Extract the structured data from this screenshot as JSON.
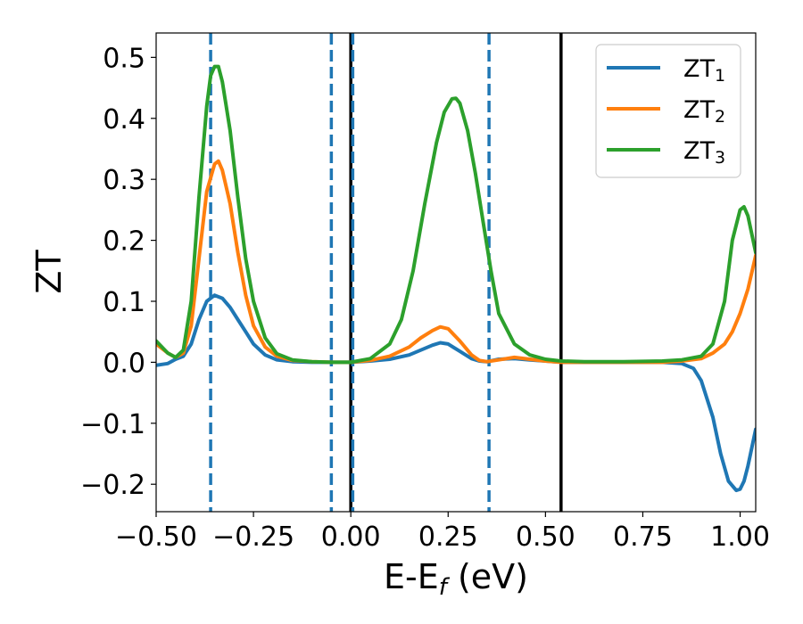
{
  "chart_data": {
    "type": "line",
    "xlabel": "E-E",
    "xlabel_sub": "f",
    "xlabel_unit": " (eV)",
    "ylabel": "ZT",
    "xlim": [
      -0.5,
      1.04
    ],
    "ylim": [
      -0.245,
      0.54
    ],
    "xticks": [
      -0.5,
      -0.25,
      0.0,
      0.25,
      0.5,
      0.75,
      1.0
    ],
    "xtick_labels": [
      "−0.50",
      "−0.25",
      "0.00",
      "0.25",
      "0.50",
      "0.75",
      "1.00"
    ],
    "yticks": [
      -0.2,
      -0.1,
      0.0,
      0.1,
      0.2,
      0.3,
      0.4,
      0.5
    ],
    "ytick_labels": [
      "−0.2",
      "−0.1",
      "0.0",
      "0.1",
      "0.2",
      "0.3",
      "0.4",
      "0.5"
    ],
    "grid": false,
    "legend_position": "top-right",
    "vertical_lines": [
      {
        "x": -0.36,
        "style": "dashed",
        "color": "#1f77b4"
      },
      {
        "x": -0.05,
        "style": "dashed",
        "color": "#1f77b4"
      },
      {
        "x": 0.0,
        "style": "solid",
        "color": "#000000"
      },
      {
        "x": 0.005,
        "style": "dashed",
        "color": "#1f77b4"
      },
      {
        "x": 0.355,
        "style": "dashed",
        "color": "#1f77b4"
      },
      {
        "x": 0.54,
        "style": "solid",
        "color": "#000000"
      }
    ],
    "series": [
      {
        "name": "ZT",
        "sub": "1",
        "color": "#1f77b4",
        "x": [
          -0.5,
          -0.47,
          -0.45,
          -0.43,
          -0.41,
          -0.39,
          -0.37,
          -0.35,
          -0.33,
          -0.31,
          -0.29,
          -0.27,
          -0.25,
          -0.22,
          -0.19,
          -0.15,
          -0.1,
          -0.05,
          0.0,
          0.05,
          0.1,
          0.15,
          0.18,
          0.21,
          0.23,
          0.25,
          0.28,
          0.31,
          0.33,
          0.35,
          0.38,
          0.42,
          0.46,
          0.5,
          0.54,
          0.6,
          0.7,
          0.8,
          0.85,
          0.88,
          0.9,
          0.93,
          0.95,
          0.97,
          0.99,
          1.0,
          1.01,
          1.02,
          1.04
        ],
        "y": [
          -0.005,
          -0.002,
          0.005,
          0.01,
          0.03,
          0.07,
          0.1,
          0.11,
          0.105,
          0.09,
          0.07,
          0.05,
          0.03,
          0.012,
          0.004,
          0.001,
          0.0,
          0.0,
          0.0,
          0.002,
          0.005,
          0.012,
          0.02,
          0.028,
          0.032,
          0.03,
          0.018,
          0.006,
          0.002,
          0.001,
          0.005,
          0.006,
          0.004,
          0.002,
          0.0,
          0.0,
          0.0,
          0.0,
          -0.002,
          -0.01,
          -0.03,
          -0.09,
          -0.15,
          -0.195,
          -0.21,
          -0.208,
          -0.195,
          -0.17,
          -0.11
        ]
      },
      {
        "name": "ZT",
        "sub": "2",
        "color": "#ff7f0e",
        "x": [
          -0.5,
          -0.47,
          -0.45,
          -0.43,
          -0.41,
          -0.39,
          -0.37,
          -0.35,
          -0.34,
          -0.33,
          -0.31,
          -0.29,
          -0.27,
          -0.25,
          -0.22,
          -0.19,
          -0.15,
          -0.1,
          -0.05,
          0.0,
          0.05,
          0.1,
          0.15,
          0.18,
          0.21,
          0.23,
          0.25,
          0.28,
          0.31,
          0.33,
          0.35,
          0.38,
          0.42,
          0.46,
          0.5,
          0.54,
          0.6,
          0.7,
          0.8,
          0.85,
          0.9,
          0.93,
          0.96,
          0.98,
          1.0,
          1.02,
          1.04
        ],
        "y": [
          0.03,
          0.015,
          0.008,
          0.015,
          0.06,
          0.17,
          0.28,
          0.325,
          0.33,
          0.315,
          0.26,
          0.18,
          0.11,
          0.06,
          0.025,
          0.01,
          0.003,
          0.001,
          0.0,
          0.0,
          0.003,
          0.01,
          0.025,
          0.04,
          0.052,
          0.058,
          0.055,
          0.035,
          0.012,
          0.003,
          0.001,
          0.004,
          0.008,
          0.005,
          0.002,
          0.0,
          0.0,
          0.0,
          0.0,
          0.002,
          0.006,
          0.015,
          0.03,
          0.05,
          0.08,
          0.12,
          0.175
        ]
      },
      {
        "name": "ZT",
        "sub": "3",
        "color": "#2ca02c",
        "x": [
          -0.5,
          -0.47,
          -0.45,
          -0.43,
          -0.41,
          -0.39,
          -0.37,
          -0.36,
          -0.35,
          -0.34,
          -0.33,
          -0.31,
          -0.29,
          -0.27,
          -0.25,
          -0.22,
          -0.19,
          -0.15,
          -0.1,
          -0.05,
          0.0,
          0.05,
          0.1,
          0.13,
          0.16,
          0.19,
          0.22,
          0.24,
          0.26,
          0.27,
          0.28,
          0.3,
          0.32,
          0.34,
          0.36,
          0.38,
          0.42,
          0.46,
          0.5,
          0.54,
          0.6,
          0.7,
          0.8,
          0.85,
          0.9,
          0.93,
          0.96,
          0.98,
          1.0,
          1.01,
          1.02,
          1.04
        ],
        "y": [
          0.035,
          0.015,
          0.008,
          0.02,
          0.1,
          0.27,
          0.42,
          0.47,
          0.485,
          0.485,
          0.46,
          0.38,
          0.27,
          0.17,
          0.1,
          0.04,
          0.014,
          0.004,
          0.001,
          0.0,
          0.0,
          0.006,
          0.03,
          0.07,
          0.15,
          0.26,
          0.36,
          0.41,
          0.432,
          0.433,
          0.425,
          0.38,
          0.31,
          0.23,
          0.15,
          0.08,
          0.03,
          0.012,
          0.005,
          0.002,
          0.001,
          0.001,
          0.002,
          0.004,
          0.01,
          0.03,
          0.1,
          0.2,
          0.25,
          0.255,
          0.24,
          0.18
        ]
      }
    ]
  }
}
